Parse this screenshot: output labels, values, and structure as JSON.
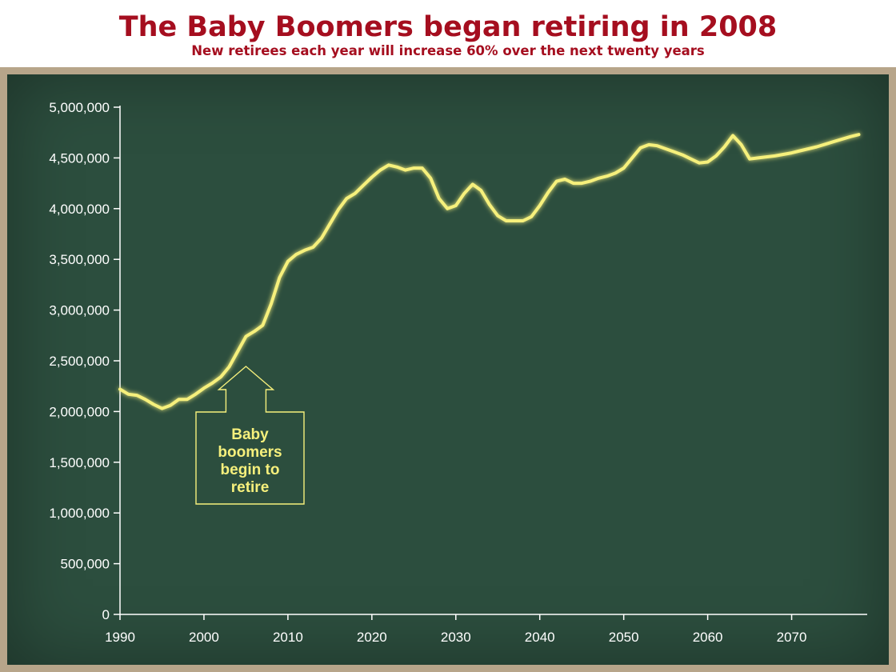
{
  "title": "The Baby Boomers began retiring in 2008",
  "subtitle": "New retirees each year will increase 60% over the next twenty years",
  "colors": {
    "title": "#a50e1f",
    "board_frame": "#b7a58a",
    "board": "#2c4e3e",
    "line": "#f6f07c",
    "axis_text": "#ffffff"
  },
  "annotation": {
    "lines": [
      "Baby",
      "boomers",
      "begin to",
      "retire"
    ],
    "x": 2005
  },
  "chart_data": {
    "type": "line",
    "title": "The Baby Boomers began retiring in 2008",
    "xlabel": "",
    "ylabel": "",
    "xlim": [
      1990,
      2079
    ],
    "ylim": [
      0,
      5000000
    ],
    "grid": false,
    "legend": "none",
    "xticks": [
      1990,
      2000,
      2010,
      2020,
      2030,
      2040,
      2050,
      2060,
      2070
    ],
    "xtick_labels": [
      "1990",
      "2000",
      "2010",
      "2020",
      "2030",
      "2040",
      "2050",
      "2060",
      "2070"
    ],
    "yticks": [
      0,
      500000,
      1000000,
      1500000,
      2000000,
      2500000,
      3000000,
      3500000,
      4000000,
      4500000,
      5000000
    ],
    "ytick_labels": [
      "0",
      "500,000",
      "1,000,000",
      "1,500,000",
      "2,000,000",
      "2,500,000",
      "3,000,000",
      "3,500,000",
      "4,000,000",
      "4,500,000",
      "5,000,000"
    ],
    "series": [
      {
        "x": [
          1990,
          1991,
          1992,
          1993,
          1994,
          1995,
          1996,
          1997,
          1998,
          1999,
          2000,
          2001,
          2002,
          2003,
          2004,
          2005,
          2006,
          2007,
          2008,
          2009,
          2010,
          2011,
          2012,
          2013,
          2014,
          2015,
          2016,
          2017,
          2018,
          2019,
          2020,
          2021,
          2022,
          2023,
          2024,
          2025,
          2026,
          2027,
          2028,
          2029,
          2030,
          2031,
          2032,
          2033,
          2034,
          2035,
          2036,
          2037,
          2038,
          2039,
          2040,
          2041,
          2042,
          2043,
          2044,
          2045,
          2046,
          2047,
          2048,
          2049,
          2050,
          2051,
          2052,
          2053,
          2054,
          2055,
          2056,
          2057,
          2058,
          2059,
          2060,
          2061,
          2062,
          2063,
          2064,
          2065,
          2066,
          2067,
          2068,
          2069,
          2070,
          2071,
          2072,
          2073,
          2074,
          2075,
          2076,
          2077,
          2078
        ],
        "values": [
          2220000,
          2170000,
          2160000,
          2120000,
          2070000,
          2030000,
          2060000,
          2120000,
          2120000,
          2170000,
          2230000,
          2280000,
          2340000,
          2440000,
          2590000,
          2740000,
          2790000,
          2850000,
          3060000,
          3320000,
          3480000,
          3550000,
          3590000,
          3620000,
          3710000,
          3850000,
          3990000,
          4100000,
          4150000,
          4230000,
          4310000,
          4380000,
          4430000,
          4410000,
          4380000,
          4400000,
          4400000,
          4300000,
          4100000,
          4000000,
          4030000,
          4150000,
          4240000,
          4180000,
          4040000,
          3930000,
          3880000,
          3880000,
          3880000,
          3920000,
          4030000,
          4160000,
          4270000,
          4290000,
          4250000,
          4250000,
          4270000,
          4300000,
          4320000,
          4350000,
          4400000,
          4500000,
          4600000,
          4630000,
          4620000,
          4590000,
          4560000,
          4530000,
          4490000,
          4450000,
          4460000,
          4520000,
          4610000,
          4720000,
          4630000,
          4490000,
          4500000,
          4510000,
          4520000,
          4535000,
          4550000,
          4570000,
          4590000,
          4610000,
          4635000,
          4660000,
          4685000,
          4710000,
          4730000
        ]
      }
    ]
  }
}
